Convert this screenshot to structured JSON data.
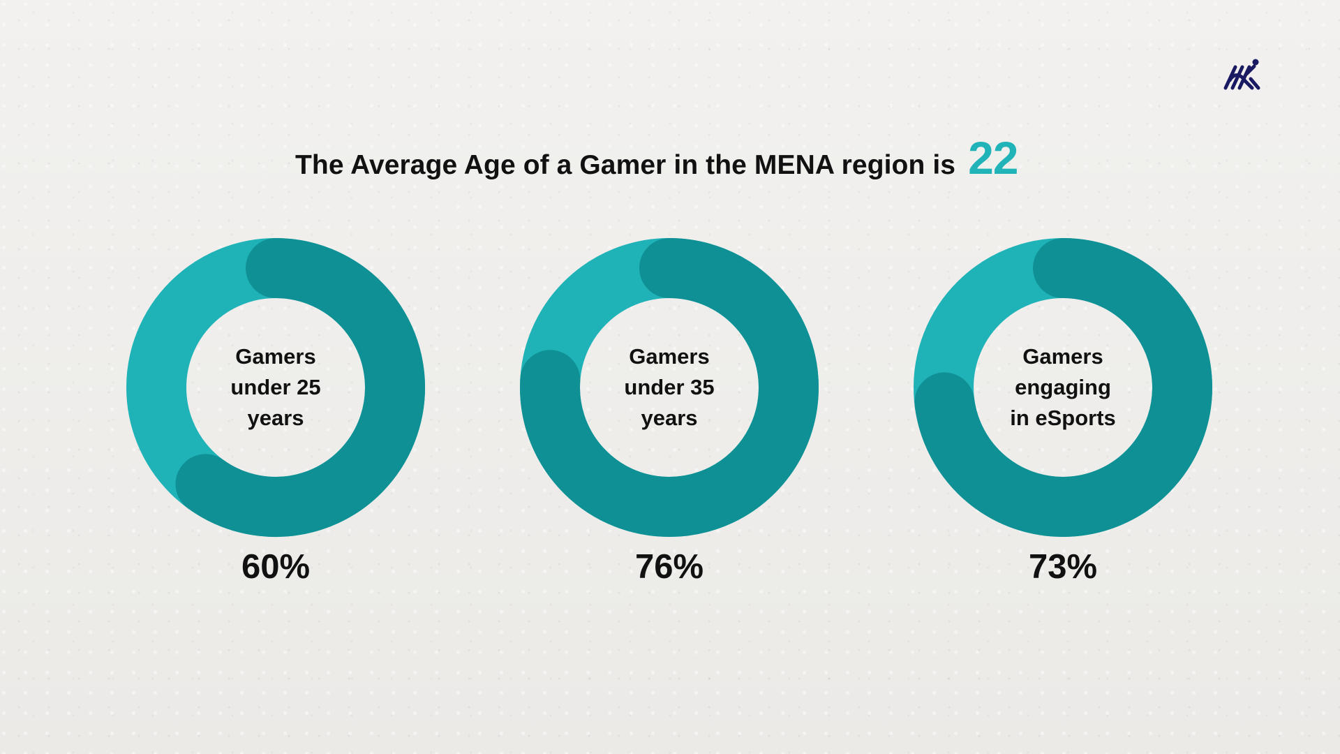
{
  "header": {
    "title": "The Average Age of a Gamer in the MENA region is",
    "highlight": "22"
  },
  "logo": {
    "name": "brand-logo"
  },
  "colors": {
    "accent": "#20b4b8",
    "ring_base": "#1fb3b8",
    "ring_fill": "#0f9095",
    "text": "#111111",
    "background": "#efeeec"
  },
  "chart_data": [
    {
      "type": "donut",
      "label": "Gamers\nunder 25\nyears",
      "value": 60,
      "value_label": "60%"
    },
    {
      "type": "donut",
      "label": "Gamers\nunder 35\nyears",
      "value": 76,
      "value_label": "76%"
    },
    {
      "type": "donut",
      "label": "Gamers\nengaging\nin eSports",
      "value": 73,
      "value_label": "73%"
    }
  ]
}
